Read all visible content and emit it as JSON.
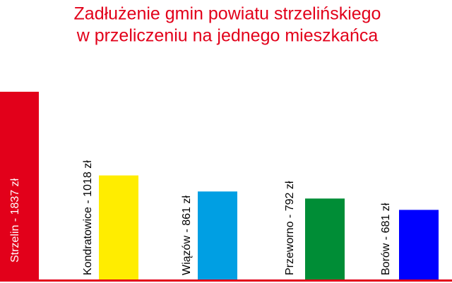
{
  "chart_data": {
    "type": "bar",
    "title": [
      "Zadłużenie gmin powiatu strzelińskiego",
      "w przeliczeniu na jednego mieszkańca"
    ],
    "categories": [
      "Strzelin - 1837 zł",
      "Kondratowice - 1018 zł",
      "Wiązów - 861 zł",
      "Przeworno - 792 zł",
      "Borów - 681 zł"
    ],
    "values": [
      1837,
      1018,
      861,
      792,
      681
    ],
    "colors": [
      "#e2001a",
      "#ffed00",
      "#009fe3",
      "#008d36",
      "#0000ff"
    ]
  }
}
